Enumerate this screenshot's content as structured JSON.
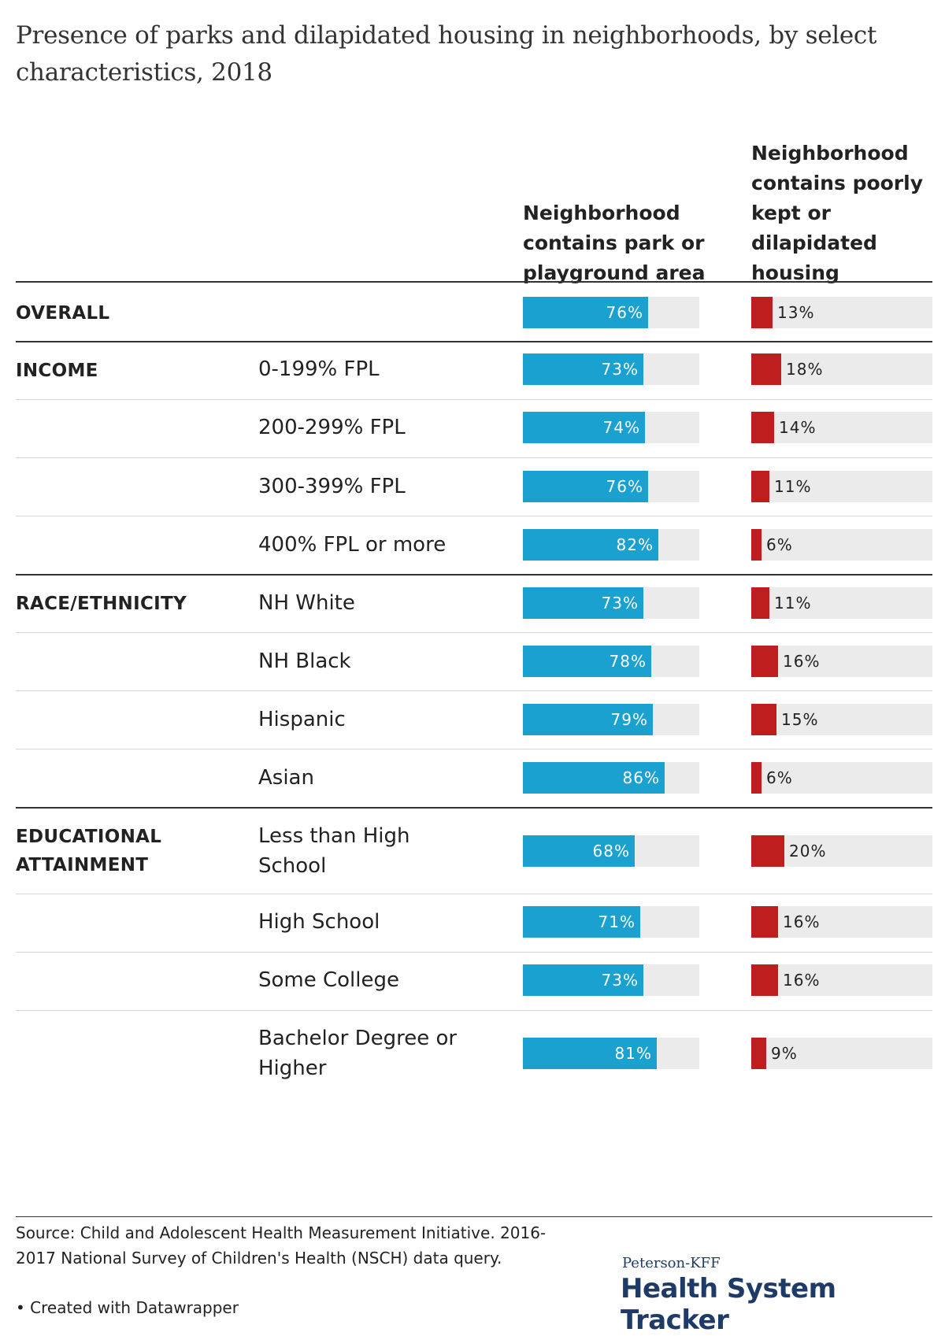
{
  "title": "Presence of parks and dilapidated housing in neighborhoods, by select characteristics, 2018",
  "columns": {
    "park": "Neighborhood contains park or playground area",
    "housing": "Neighborhood contains poorly kept or dilapidated housing"
  },
  "colors": {
    "park": "#1aa1d0",
    "housing": "#bf1e1e",
    "track": "#ebebeb"
  },
  "chart_data": {
    "type": "bar",
    "title": "Presence of parks and dilapidated housing in neighborhoods, by select characteristics, 2018",
    "value_format": "percent",
    "xlim": [
      0,
      100
    ],
    "rows": [
      {
        "group": "OVERALL",
        "label": "",
        "park": 76,
        "housing": 13
      },
      {
        "group": "INCOME",
        "label": "0-199% FPL",
        "park": 73,
        "housing": 18
      },
      {
        "group": "",
        "label": "200-299% FPL",
        "park": 74,
        "housing": 14
      },
      {
        "group": "",
        "label": "300-399% FPL",
        "park": 76,
        "housing": 11
      },
      {
        "group": "",
        "label": "400% FPL or more",
        "park": 82,
        "housing": 6
      },
      {
        "group": "RACE/ETHNICITY",
        "label": "NH White",
        "park": 73,
        "housing": 11
      },
      {
        "group": "",
        "label": "NH Black",
        "park": 78,
        "housing": 16
      },
      {
        "group": "",
        "label": "Hispanic",
        "park": 79,
        "housing": 15
      },
      {
        "group": "",
        "label": "Asian",
        "park": 86,
        "housing": 6
      },
      {
        "group": "EDUCATIONAL ATTAINMENT",
        "label": "Less than High School",
        "park": 68,
        "housing": 20
      },
      {
        "group": "",
        "label": "High School",
        "park": 71,
        "housing": 16
      },
      {
        "group": "",
        "label": "Some College",
        "park": 73,
        "housing": 16
      },
      {
        "group": "",
        "label": "Bachelor Degree or Higher",
        "park": 81,
        "housing": 9
      }
    ]
  },
  "footer": {
    "source": "Source: Child and Adolescent Health Measurement Initiative. 2016-2017 National Survey of Children's Health (NSCH) data query.",
    "credit": "• Created with Datawrapper",
    "brand_small": "Peterson-KFF",
    "brand_big": "Health System Tracker"
  }
}
